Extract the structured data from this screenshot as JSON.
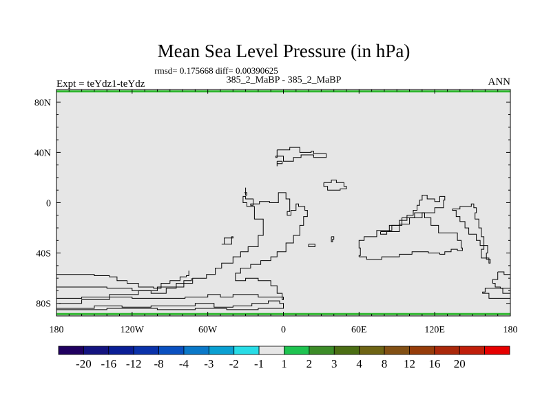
{
  "chart_data": {
    "type": "heatmap",
    "title": "Mean Sea Level Pressure (in hPa)",
    "stats_line": "rmsd= 0.175668 diff= 0.00390625",
    "subtitle_center": "385_2_MaBP - 385_2_MaBP",
    "left_label": "Expt = teYdz1-teYdz",
    "right_label": "ANN",
    "xlim": [
      -180,
      180
    ],
    "ylim": [
      -90,
      90
    ],
    "x_ticks": [
      {
        "value": -180,
        "label": "180"
      },
      {
        "value": -120,
        "label": "120W"
      },
      {
        "value": -60,
        "label": "60W"
      },
      {
        "value": 0,
        "label": "0"
      },
      {
        "value": 60,
        "label": "60E"
      },
      {
        "value": 120,
        "label": "120E"
      },
      {
        "value": 180,
        "label": "180"
      }
    ],
    "y_ticks": [
      {
        "value": 80,
        "label": "80N"
      },
      {
        "value": 40,
        "label": "40N"
      },
      {
        "value": 0,
        "label": "0"
      },
      {
        "value": -40,
        "label": "40S"
      },
      {
        "value": -80,
        "label": "80S"
      }
    ],
    "field_fill_color": "#e6e6e6",
    "polar_band_color": "#2eb52e",
    "polar_band_latitudes": [
      88.5,
      -88.5
    ],
    "colorbar": {
      "colors": [
        "#200060",
        "#141480",
        "#0a1e96",
        "#0a32aa",
        "#0a50c0",
        "#0a78c8",
        "#0aa0d2",
        "#28dce6",
        "#e6e6e6",
        "#1ec350",
        "#3c8c28",
        "#4b6e14",
        "#6e6414",
        "#825014",
        "#963c0a",
        "#aa280a",
        "#c01e0a",
        "#e60000"
      ],
      "labels": [
        "-20",
        "-16",
        "-12",
        "-8",
        "-4",
        "-3",
        "-2",
        "-1",
        "1",
        "2",
        "3",
        "4",
        "8",
        "12",
        "16",
        "20"
      ]
    },
    "coastlines": [
      [
        [
          -180,
          -57
        ],
        [
          -165,
          -57
        ],
        [
          -150,
          -58
        ],
        [
          -138,
          -59
        ],
        [
          -132,
          -62
        ],
        [
          -124,
          -64
        ],
        [
          -115,
          -67
        ],
        [
          -103,
          -68
        ],
        [
          -97,
          -64
        ],
        [
          -90,
          -62
        ],
        [
          -82,
          -59
        ],
        [
          -77,
          -58
        ],
        [
          -75,
          -54
        ]
      ],
      [
        [
          -180,
          -67
        ],
        [
          -160,
          -67
        ],
        [
          -140,
          -68
        ],
        [
          -120,
          -70
        ],
        [
          -105,
          -72
        ],
        [
          -100,
          -72
        ],
        [
          -93,
          -68
        ],
        [
          -85,
          -67
        ],
        [
          -79,
          -62
        ],
        [
          -73,
          -60
        ]
      ],
      [
        [
          -180,
          -76
        ],
        [
          -160,
          -75
        ],
        [
          -140,
          -75
        ],
        [
          -120,
          -76
        ],
        [
          -105,
          -76
        ],
        [
          -90,
          -76
        ],
        [
          -78,
          -75
        ],
        [
          -68,
          -75
        ],
        [
          -60,
          -73
        ],
        [
          -50,
          -75
        ],
        [
          -40,
          -73
        ],
        [
          -30,
          -73
        ],
        [
          -20,
          -75
        ],
        [
          -10,
          -75
        ],
        [
          0,
          -77
        ],
        [
          -1,
          -72
        ],
        [
          -5,
          -66
        ],
        [
          -10,
          -62
        ],
        [
          -20,
          -60
        ],
        [
          -30,
          -62
        ],
        [
          -38,
          -56
        ],
        [
          -34,
          -52
        ],
        [
          -26,
          -49
        ],
        [
          -18,
          -46
        ],
        [
          -10,
          -43
        ],
        [
          -5,
          -39
        ],
        [
          2,
          -32
        ],
        [
          8,
          -26
        ],
        [
          13,
          -18
        ],
        [
          16,
          -11
        ],
        [
          19,
          -6
        ],
        [
          17,
          -3
        ],
        [
          12,
          -1
        ],
        [
          10,
          -6
        ],
        [
          6,
          -10
        ],
        [
          3,
          -7
        ],
        [
          5,
          3
        ],
        [
          2,
          8
        ],
        [
          -4,
          0
        ],
        [
          -11,
          1
        ],
        [
          -19,
          -1
        ],
        [
          -26,
          -2
        ],
        [
          -24,
          3
        ],
        [
          -30,
          5
        ],
        [
          -32,
          0
        ],
        [
          -29,
          -3
        ],
        [
          -23,
          -4
        ],
        [
          -23,
          -13
        ],
        [
          -16,
          -26
        ],
        [
          -20,
          -35
        ],
        [
          -28,
          -39
        ],
        [
          -34,
          -43
        ],
        [
          -40,
          -48
        ],
        [
          -49,
          -52
        ],
        [
          -54,
          -57
        ],
        [
          -61,
          -60
        ],
        [
          -72,
          -64
        ],
        [
          -85,
          -67
        ],
        [
          -100,
          -70
        ],
        [
          -115,
          -73
        ],
        [
          -138,
          -77
        ],
        [
          -160,
          -80
        ],
        [
          -178,
          -80
        ]
      ],
      [
        [
          -180,
          -84
        ],
        [
          -170,
          -84
        ],
        [
          -150,
          -82
        ],
        [
          -128,
          -83
        ],
        [
          -105,
          -82
        ],
        [
          -90,
          -82
        ],
        [
          -70,
          -80
        ],
        [
          -55,
          -83
        ],
        [
          -40,
          -82
        ],
        [
          -25,
          -80
        ],
        [
          -12,
          -78
        ],
        [
          -3,
          -80
        ],
        [
          0,
          -84
        ],
        [
          -20,
          -85
        ],
        [
          -45,
          -84
        ],
        [
          -70,
          -85
        ],
        [
          -100,
          -84
        ],
        [
          -140,
          -85
        ],
        [
          -175,
          -85
        ],
        [
          -180,
          -84
        ]
      ],
      [
        [
          -49,
          -33
        ],
        [
          -47,
          -28
        ],
        [
          -40,
          -27
        ],
        [
          -41,
          -33
        ],
        [
          -49,
          -33
        ]
      ],
      [
        [
          -31,
          8
        ],
        [
          -29,
          6
        ],
        [
          -30,
          12
        ]
      ],
      [
        [
          -5,
          42
        ],
        [
          5,
          44
        ],
        [
          13,
          40
        ],
        [
          22,
          41
        ],
        [
          24,
          39
        ],
        [
          31,
          39
        ],
        [
          34,
          36
        ],
        [
          24,
          38
        ],
        [
          14,
          36
        ],
        [
          8,
          33
        ],
        [
          0,
          37
        ],
        [
          -6,
          36
        ],
        [
          -5,
          42
        ]
      ],
      [
        [
          -5,
          33
        ],
        [
          -1,
          31
        ],
        [
          -5,
          29
        ],
        [
          -5,
          33
        ]
      ],
      [
        [
          32,
          16
        ],
        [
          38,
          18
        ],
        [
          42,
          16
        ],
        [
          48,
          13
        ],
        [
          50,
          11
        ],
        [
          45,
          10
        ],
        [
          38,
          10
        ],
        [
          35,
          13
        ],
        [
          32,
          16
        ]
      ],
      [
        [
          20,
          -33
        ],
        [
          25,
          -33
        ],
        [
          25,
          -35
        ],
        [
          20,
          -35
        ],
        [
          20,
          -33
        ]
      ],
      [
        [
          38,
          -27
        ],
        [
          40,
          -29
        ],
        [
          39,
          -31
        ],
        [
          38,
          -27
        ]
      ],
      [
        [
          60,
          -43
        ],
        [
          66,
          -45
        ],
        [
          78,
          -43
        ],
        [
          92,
          -41
        ],
        [
          102,
          -39
        ],
        [
          115,
          -40
        ],
        [
          124,
          -41
        ],
        [
          128,
          -39
        ],
        [
          133,
          -37
        ],
        [
          138,
          -38
        ],
        [
          142,
          -36
        ],
        [
          141,
          -30
        ],
        [
          138,
          -24
        ],
        [
          128,
          -24
        ],
        [
          123,
          -18
        ],
        [
          117,
          -12
        ],
        [
          112,
          -8
        ],
        [
          104,
          -12
        ],
        [
          94,
          -18
        ],
        [
          86,
          -22
        ],
        [
          74,
          -27
        ],
        [
          64,
          -30
        ],
        [
          60,
          -36
        ],
        [
          61,
          -42
        ],
        [
          60,
          -43
        ]
      ],
      [
        [
          77,
          -23
        ],
        [
          84,
          -18
        ],
        [
          92,
          -14
        ],
        [
          98,
          -10
        ],
        [
          103,
          -6
        ],
        [
          106,
          -2
        ],
        [
          108,
          2
        ],
        [
          110,
          6
        ],
        [
          114,
          3
        ],
        [
          120,
          1
        ],
        [
          124,
          5
        ],
        [
          128,
          2
        ],
        [
          127,
          -4
        ],
        [
          120,
          -8
        ],
        [
          110,
          -12
        ],
        [
          100,
          -17
        ],
        [
          92,
          -23
        ],
        [
          82,
          -25
        ],
        [
          77,
          -23
        ]
      ],
      [
        [
          134,
          -5
        ],
        [
          140,
          -3
        ],
        [
          149,
          -1
        ],
        [
          151,
          -4
        ],
        [
          153,
          -8
        ],
        [
          152,
          -13
        ],
        [
          155,
          -20
        ],
        [
          157,
          -27
        ],
        [
          159,
          -37
        ],
        [
          157,
          -44
        ],
        [
          163,
          -48
        ],
        [
          164,
          -45
        ],
        [
          161,
          -40
        ],
        [
          162,
          -34
        ],
        [
          156,
          -30
        ],
        [
          153,
          -25
        ],
        [
          147,
          -20
        ],
        [
          144,
          -15
        ],
        [
          140,
          -11
        ],
        [
          137,
          -6
        ],
        [
          134,
          -5
        ]
      ],
      [
        [
          170,
          -55
        ],
        [
          175,
          -57
        ],
        [
          180,
          -60
        ],
        [
          180,
          -68
        ],
        [
          172,
          -67
        ],
        [
          168,
          -64
        ],
        [
          166,
          -61
        ],
        [
          170,
          -55
        ]
      ],
      [
        [
          167,
          -68
        ],
        [
          174,
          -72
        ],
        [
          180,
          -72
        ],
        [
          180,
          -76
        ],
        [
          170,
          -76
        ],
        [
          163,
          -72
        ],
        [
          158,
          -71
        ],
        [
          160,
          -68
        ],
        [
          167,
          -68
        ]
      ]
    ]
  }
}
